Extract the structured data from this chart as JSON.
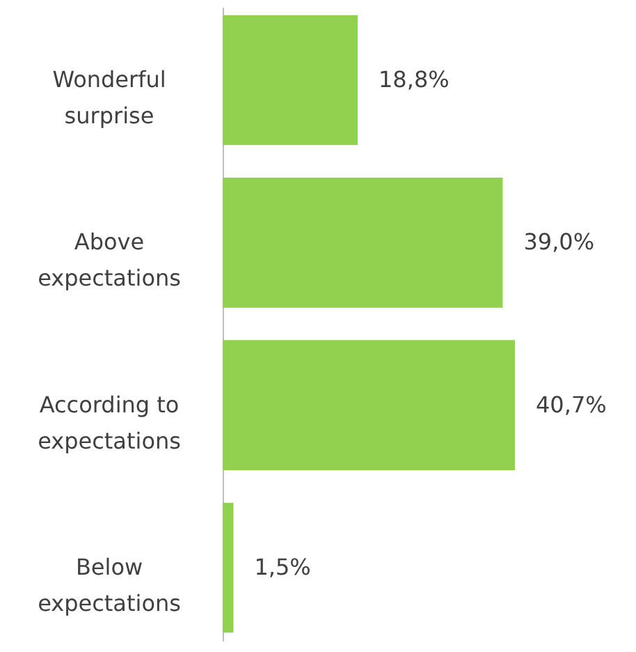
{
  "chart_data": {
    "type": "bar",
    "orientation": "horizontal",
    "categories": [
      "Wonderful surprise",
      "Above expectations",
      "According to expectations",
      "Below expectations"
    ],
    "values": [
      18.8,
      39.0,
      40.7,
      1.5
    ],
    "value_labels": [
      "18,8%",
      "39,0%",
      "40,7%",
      "1,5%"
    ],
    "color": "#92d050",
    "tick_labels": "y"
  }
}
